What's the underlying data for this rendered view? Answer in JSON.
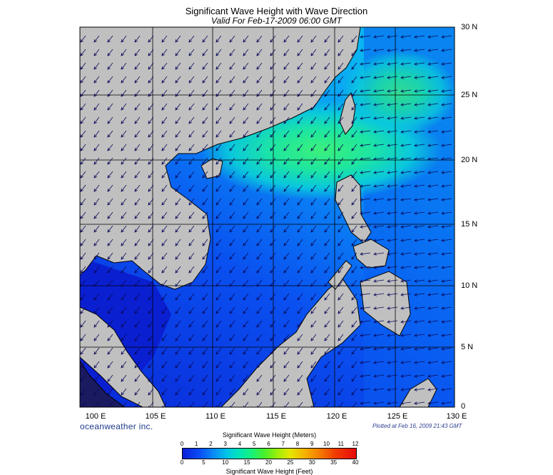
{
  "title": "Significant Wave Height with Wave Direction",
  "subtitle": "Valid For Feb-17-2009 06:00 GMT",
  "lat_labels": [
    "30 N",
    "25 N",
    "20 N",
    "15 N",
    "10 N",
    "5 N",
    "0"
  ],
  "lon_labels": [
    "100 E",
    "105 E",
    "110 E",
    "115 E",
    "120 E",
    "125 E",
    "130 E"
  ],
  "brand": "oceanweather inc.",
  "plotted": "Plotted at Feb 16, 2009 21:43 GMT",
  "colorbar": {
    "meters_label": "Significant Wave Height (Meters)",
    "feet_label": "Significant Wave Height (Feet)",
    "meters_ticks": [
      "0",
      "1",
      "2",
      "3",
      "4",
      "5",
      "6",
      "7",
      "8",
      "9",
      "10",
      "11",
      "12"
    ],
    "feet_ticks": [
      "0",
      "5",
      "10",
      "15",
      "20",
      "25",
      "30",
      "35",
      "40"
    ]
  },
  "colors": {
    "land": "#c0c0c0",
    "low_wave": "#0a2ee0",
    "mid_wave": "#0a8cf5",
    "high_wave": "#19f07a"
  }
}
